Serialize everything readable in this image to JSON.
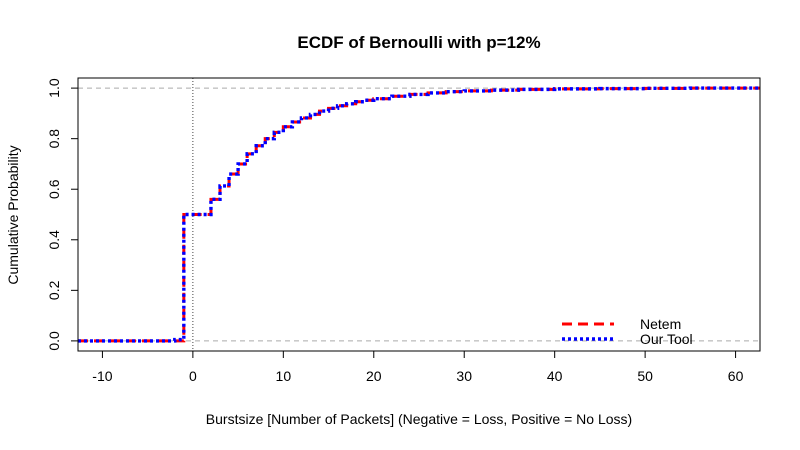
{
  "chart_data": {
    "type": "line",
    "subtype": "step-ecdf",
    "title": "ECDF of Bernoulli with p=12%",
    "xlabel": "Burstsize [Number of Packets] (Negative = Loss, Positive = No Loss)",
    "ylabel": "Cumulative Probability",
    "xlim": [
      -12.7,
      62.7
    ],
    "ylim": [
      -0.04,
      1.04
    ],
    "x_ticks": [
      -10,
      0,
      10,
      20,
      30,
      40,
      50,
      60
    ],
    "x_tick_labels": [
      "-10",
      "0",
      "10",
      "20",
      "30",
      "40",
      "50",
      "60"
    ],
    "y_ticks": [
      0.0,
      0.2,
      0.4,
      0.6,
      0.8,
      1.0
    ],
    "y_tick_labels": [
      "0.0",
      "0.2",
      "0.4",
      "0.6",
      "0.8",
      "1.0"
    ],
    "reference_lines": {
      "horizontal": [
        0,
        1
      ],
      "vertical": [
        0
      ]
    },
    "legend_position": "bottom-right",
    "series": [
      {
        "name": "Netem",
        "color": "#ff0000",
        "line_style": "dashed",
        "points": [
          [
            -12.7,
            0.0
          ],
          [
            -2,
            0.0
          ],
          [
            -1,
            0.5
          ],
          [
            1,
            0.5
          ],
          [
            2,
            0.56
          ],
          [
            3,
            0.613
          ],
          [
            4,
            0.66
          ],
          [
            5,
            0.7
          ],
          [
            6,
            0.74
          ],
          [
            7,
            0.772
          ],
          [
            8,
            0.8
          ],
          [
            9,
            0.825
          ],
          [
            10,
            0.847
          ],
          [
            11,
            0.866
          ],
          [
            12,
            0.882
          ],
          [
            13,
            0.896
          ],
          [
            14,
            0.909
          ],
          [
            15,
            0.92
          ],
          [
            16,
            0.93
          ],
          [
            17,
            0.938
          ],
          [
            18,
            0.946
          ],
          [
            19,
            0.952
          ],
          [
            20,
            0.958
          ],
          [
            22,
            0.968
          ],
          [
            24,
            0.975
          ],
          [
            26,
            0.981
          ],
          [
            28,
            0.986
          ],
          [
            30,
            0.989
          ],
          [
            33,
            0.992
          ],
          [
            36,
            0.995
          ],
          [
            40,
            0.997
          ],
          [
            45,
            0.998
          ],
          [
            50,
            0.999
          ],
          [
            55,
            1.0
          ],
          [
            62.7,
            1.0
          ]
        ]
      },
      {
        "name": "Our Tool",
        "color": "#0000ff",
        "line_style": "dotted",
        "points": [
          [
            -12.7,
            0.0
          ],
          [
            -3,
            0.0
          ],
          [
            -2,
            0.005
          ],
          [
            -1,
            0.06
          ],
          [
            -1,
            0.5
          ],
          [
            1,
            0.5
          ],
          [
            2,
            0.56
          ],
          [
            3,
            0.613
          ],
          [
            4,
            0.66
          ],
          [
            5,
            0.7
          ],
          [
            6,
            0.74
          ],
          [
            7,
            0.772
          ],
          [
            8,
            0.8
          ],
          [
            9,
            0.825
          ],
          [
            10,
            0.847
          ],
          [
            11,
            0.866
          ],
          [
            12,
            0.882
          ],
          [
            13,
            0.896
          ],
          [
            14,
            0.909
          ],
          [
            15,
            0.92
          ],
          [
            16,
            0.93
          ],
          [
            17,
            0.938
          ],
          [
            18,
            0.946
          ],
          [
            19,
            0.952
          ],
          [
            20,
            0.958
          ],
          [
            22,
            0.968
          ],
          [
            24,
            0.975
          ],
          [
            26,
            0.981
          ],
          [
            28,
            0.986
          ],
          [
            30,
            0.989
          ],
          [
            33,
            0.992
          ],
          [
            36,
            0.995
          ],
          [
            40,
            0.997
          ],
          [
            45,
            0.998
          ],
          [
            50,
            0.999
          ],
          [
            55,
            1.0
          ],
          [
            62.7,
            1.0
          ]
        ]
      }
    ]
  }
}
